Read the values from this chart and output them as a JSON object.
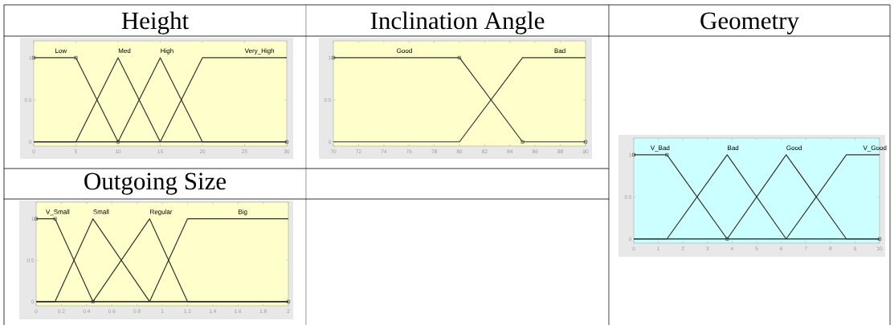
{
  "chart_data": [
    {
      "type": "line",
      "title": "Height",
      "xlim": [
        0,
        30
      ],
      "xticks": [
        0,
        5,
        10,
        15,
        20,
        25,
        30
      ],
      "ylim": [
        -0.05,
        1.2
      ],
      "yticks": [
        0,
        0.5,
        1
      ],
      "series": [
        {
          "name": "Low",
          "color": "#33332b",
          "marker": "square",
          "x": [
            0,
            5,
            10,
            30
          ],
          "values": [
            1,
            1,
            0,
            0
          ]
        },
        {
          "name": "Med",
          "color": "#33332b",
          "x": [
            0,
            5,
            10,
            15,
            30
          ],
          "values": [
            0,
            0,
            1,
            0,
            0
          ]
        },
        {
          "name": "High",
          "color": "#33332b",
          "x": [
            0,
            10,
            15,
            20,
            30
          ],
          "values": [
            0,
            0,
            1,
            0,
            0
          ]
        },
        {
          "name": "Very_High",
          "color": "#33332b",
          "x": [
            0,
            15,
            20,
            30
          ],
          "values": [
            0,
            0,
            1,
            1
          ]
        }
      ]
    },
    {
      "type": "line",
      "title": "Inclination Angle",
      "xlim": [
        70,
        90
      ],
      "xticks": [
        70,
        72,
        74,
        76,
        78,
        80,
        82,
        84,
        86,
        88,
        90
      ],
      "ylim": [
        -0.05,
        1.2
      ],
      "yticks": [
        0,
        0.5,
        1
      ],
      "series": [
        {
          "name": "Good",
          "color": "#33332b",
          "marker": "square",
          "x": [
            70,
            80,
            85,
            90
          ],
          "values": [
            1,
            1,
            0,
            0
          ]
        },
        {
          "name": "Bad",
          "color": "#33332b",
          "x": [
            70,
            80,
            85,
            90
          ],
          "values": [
            0,
            0,
            1,
            1
          ]
        }
      ]
    },
    {
      "type": "line",
      "title": "Geometry",
      "xlim": [
        0,
        10
      ],
      "xticks": [
        0,
        1,
        2,
        3,
        4,
        5,
        6,
        7,
        8,
        9,
        10
      ],
      "ylim": [
        -0.05,
        1.2
      ],
      "yticks": [
        0,
        0.5,
        1
      ],
      "series": [
        {
          "name": "V_Bad",
          "color": "#33332b",
          "marker": "square",
          "x": [
            0,
            1.35,
            3.8,
            10
          ],
          "values": [
            1,
            1,
            0,
            0
          ]
        },
        {
          "name": "Bad",
          "color": "#33332b",
          "x": [
            0,
            1.35,
            3.8,
            6.2,
            10
          ],
          "values": [
            0,
            0,
            1,
            0,
            0
          ]
        },
        {
          "name": "Good",
          "color": "#33332b",
          "x": [
            0,
            3.8,
            6.2,
            8.65,
            10
          ],
          "values": [
            0,
            0,
            1,
            0,
            0
          ]
        },
        {
          "name": "V_Good",
          "color": "#33332b",
          "x": [
            0,
            6.2,
            8.65,
            10
          ],
          "values": [
            0,
            0,
            1,
            1
          ]
        }
      ]
    },
    {
      "type": "line",
      "title": "Outgoing Size",
      "xlim": [
        0,
        2
      ],
      "xticks": [
        0,
        0.2,
        0.4,
        0.6,
        0.8,
        1,
        1.2,
        1.4,
        1.6,
        1.8,
        2
      ],
      "ylim": [
        -0.05,
        1.2
      ],
      "yticks": [
        0,
        0.5,
        1
      ],
      "series": [
        {
          "name": "V_Small",
          "color": "#33332b",
          "marker": "square",
          "x": [
            0,
            0.15,
            0.45,
            2
          ],
          "values": [
            1,
            1,
            0,
            0
          ]
        },
        {
          "name": "Small",
          "color": "#33332b",
          "x": [
            0,
            0.15,
            0.45,
            0.9,
            2
          ],
          "values": [
            0,
            0,
            1,
            0,
            0
          ]
        },
        {
          "name": "Regular",
          "color": "#33332b",
          "x": [
            0,
            0.45,
            0.9,
            1.2,
            2
          ],
          "values": [
            0,
            0,
            1,
            0,
            0
          ]
        },
        {
          "name": "Big",
          "color": "#33332b",
          "x": [
            0,
            0.9,
            1.2,
            2
          ],
          "values": [
            0,
            0,
            1,
            1
          ]
        }
      ]
    }
  ]
}
